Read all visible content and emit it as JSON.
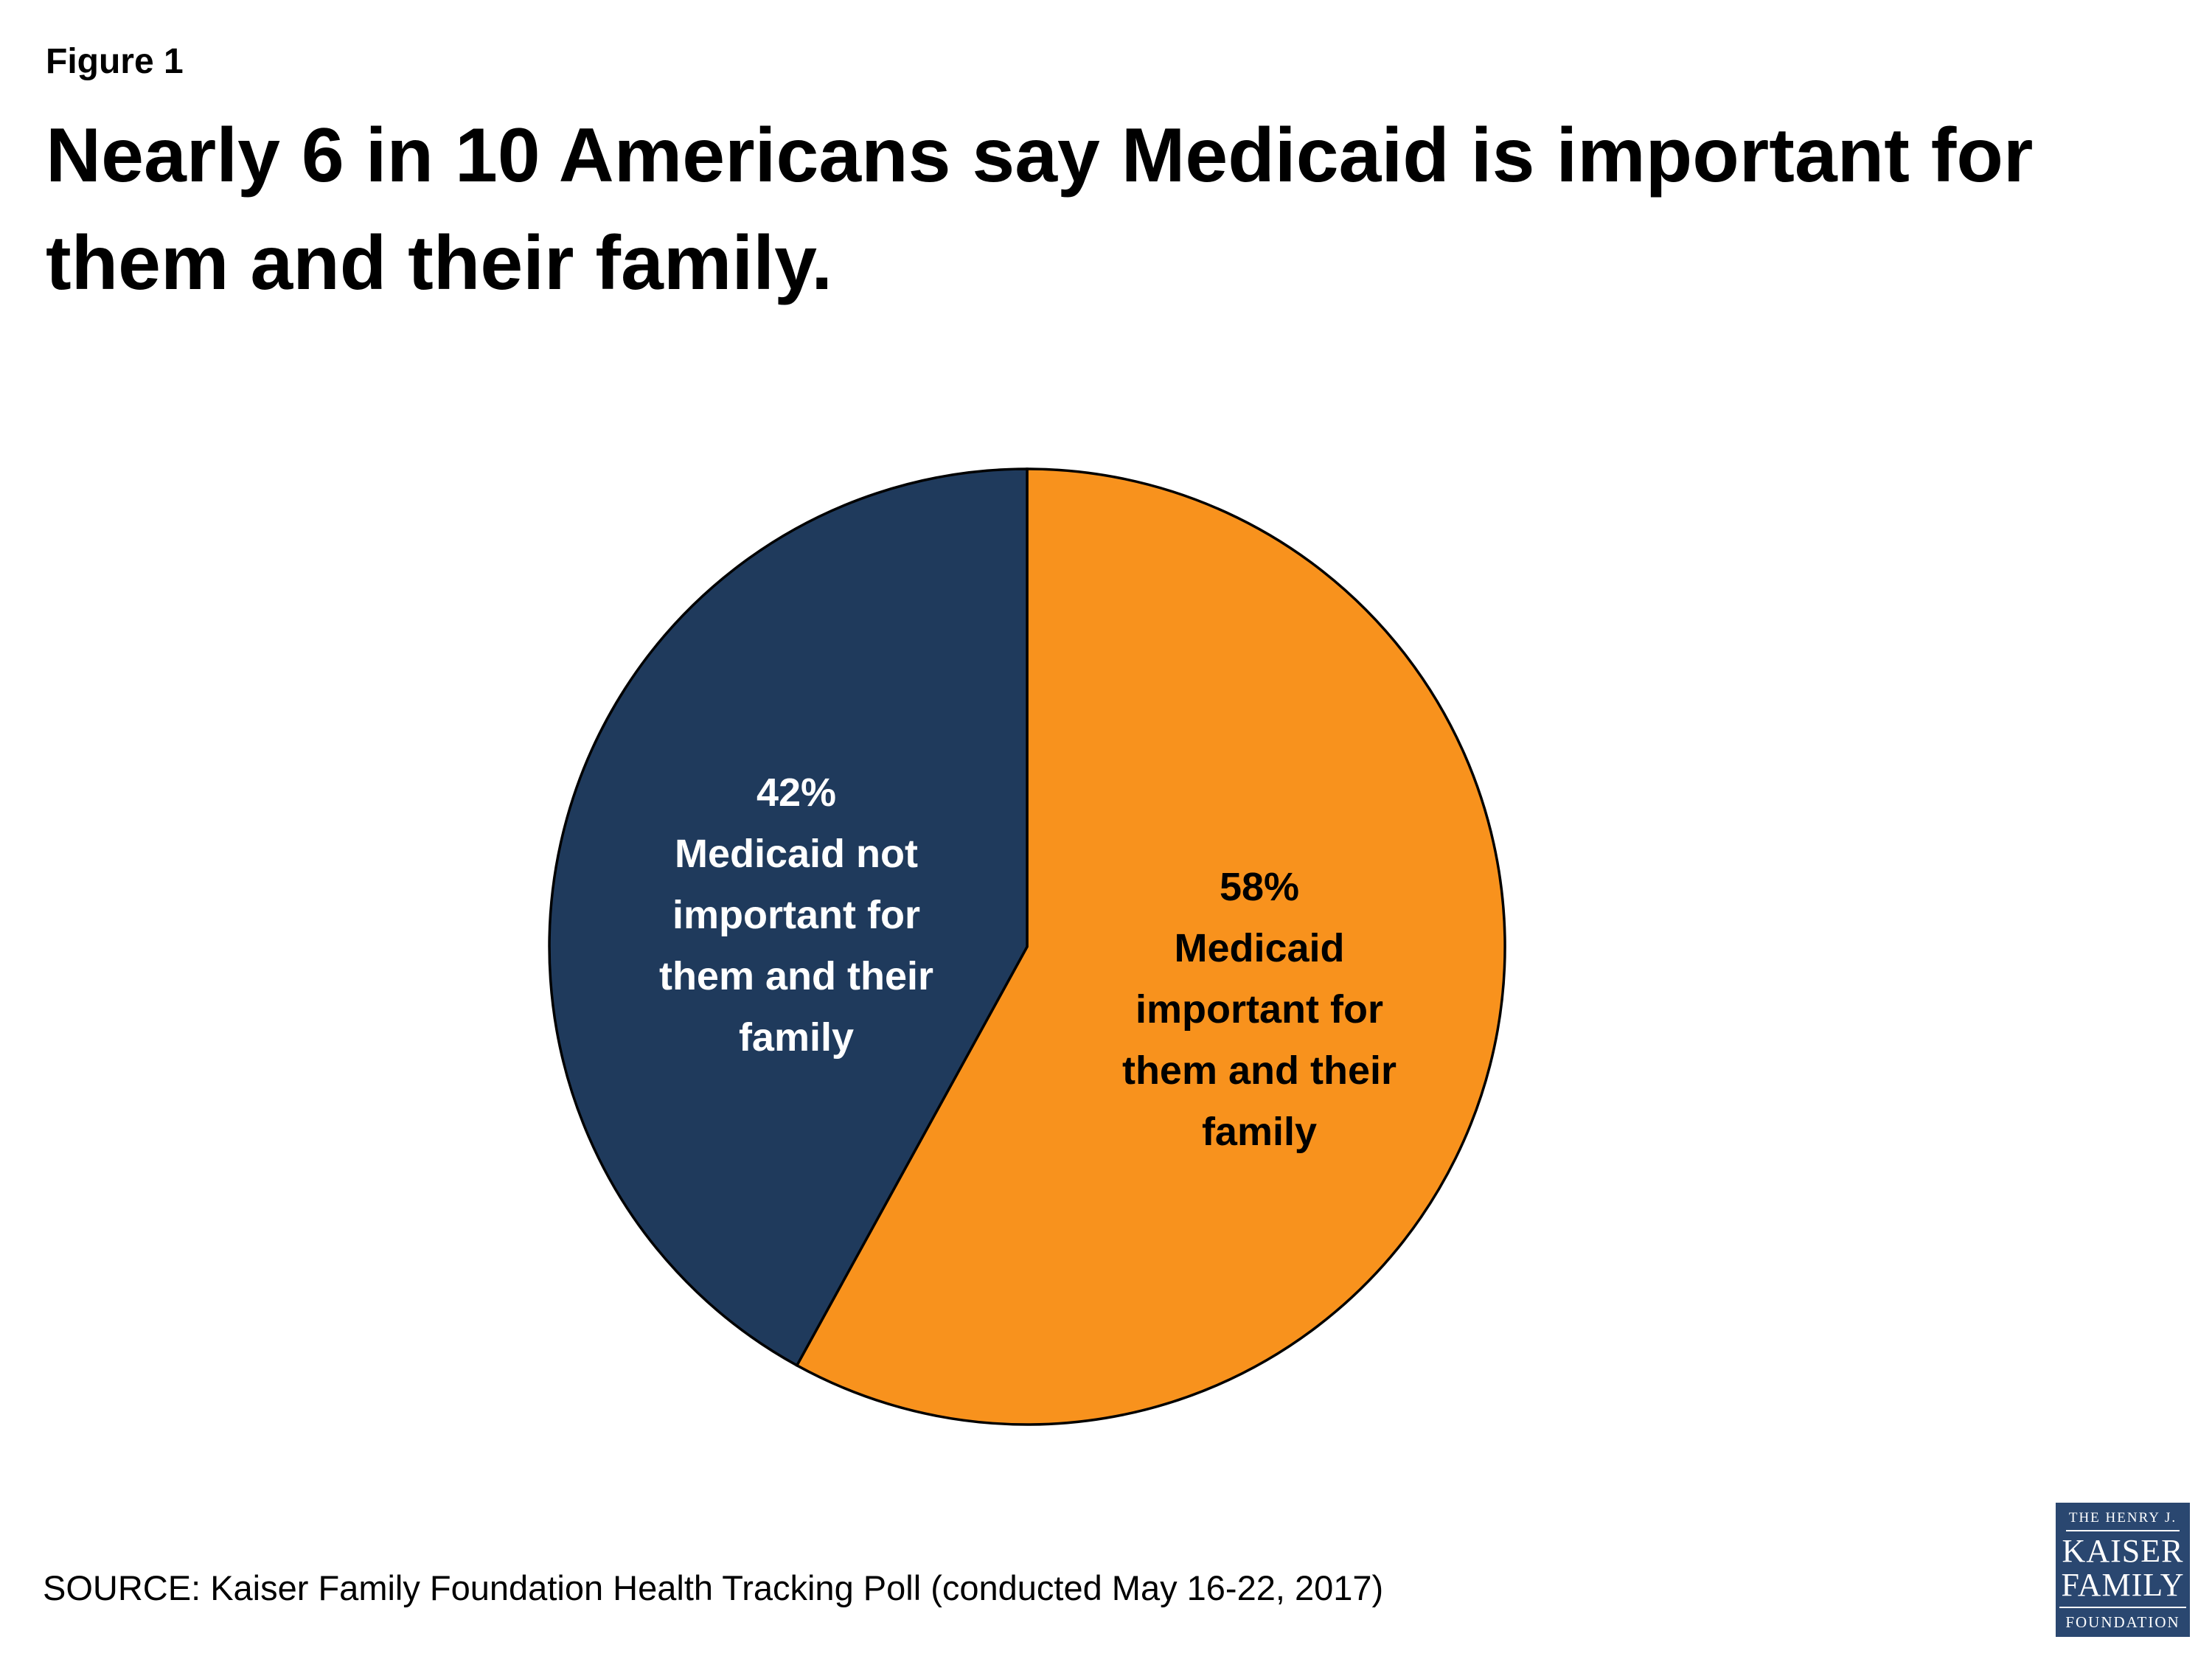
{
  "figure_label": "Figure 1",
  "title_display": "Nearly 6 in 10 Americans say Medicaid is important for\nthem and their family.",
  "source": "SOURCE: Kaiser Family Foundation Health Tracking Poll (conducted May 16-22, 2017)",
  "logo": {
    "bg_color": "#2A4770",
    "line1": "THE HENRY J.",
    "line2": "KAISER",
    "line3": "FAMILY",
    "line4": "FOUNDATION"
  },
  "chart_data": {
    "type": "pie",
    "title": "Nearly 6 in 10 Americans say Medicaid is important for them and their family.",
    "start_angle_deg": 0,
    "direction": "clockwise",
    "outline_color": "#000000",
    "slices": [
      {
        "label": "Medicaid important for them and their family",
        "pct": 58,
        "color": "#F8921D",
        "text_color": "#000000",
        "display_label": "58%\nMedicaid\nimportant for\nthem and their\nfamily"
      },
      {
        "label": "Medicaid not important for them and their family",
        "pct": 42,
        "color": "#1F3A5C",
        "text_color": "#FFFFFF",
        "display_label": "42%\nMedicaid not\nimportant for\nthem and their\nfamily"
      }
    ]
  }
}
